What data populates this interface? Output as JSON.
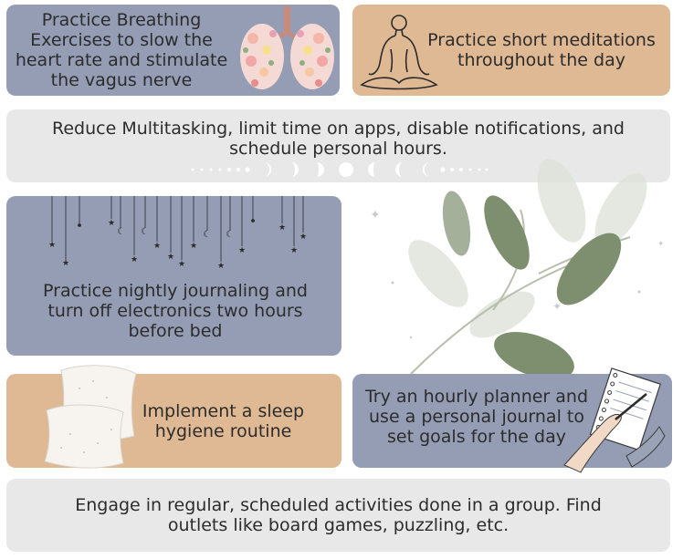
{
  "tips": {
    "breathing": "Practice Breathing Exercises to slow the heart rate and stimulate the vagus nerve",
    "meditation": "Practice short meditations throughout the day",
    "multitasking": "Reduce Multitasking, limit time on apps, disable notifications, and schedule personal hours.",
    "journaling": "Practice nightly journaling and turn off electronics two hours before bed",
    "sleep": "Implement a sleep hygiene routine",
    "planner": "Try an hourly planner and use a personal journal to set goals for the day",
    "group": "Engage in regular, scheduled activities done in a group. Find outlets like board games, puzzling, etc."
  },
  "colors": {
    "blue_card": "#949db4",
    "tan_card": "#dfb994",
    "grey_card": "#e8e8e8",
    "leaf": "#7d8f6e"
  },
  "icons": [
    "lungs-floral-icon",
    "meditation-figure-icon",
    "moon-phases-icon",
    "hanging-stars-moons-icon",
    "pillows-icon",
    "eucalyptus-leaves-icon",
    "hand-writing-notebook-icon"
  ]
}
